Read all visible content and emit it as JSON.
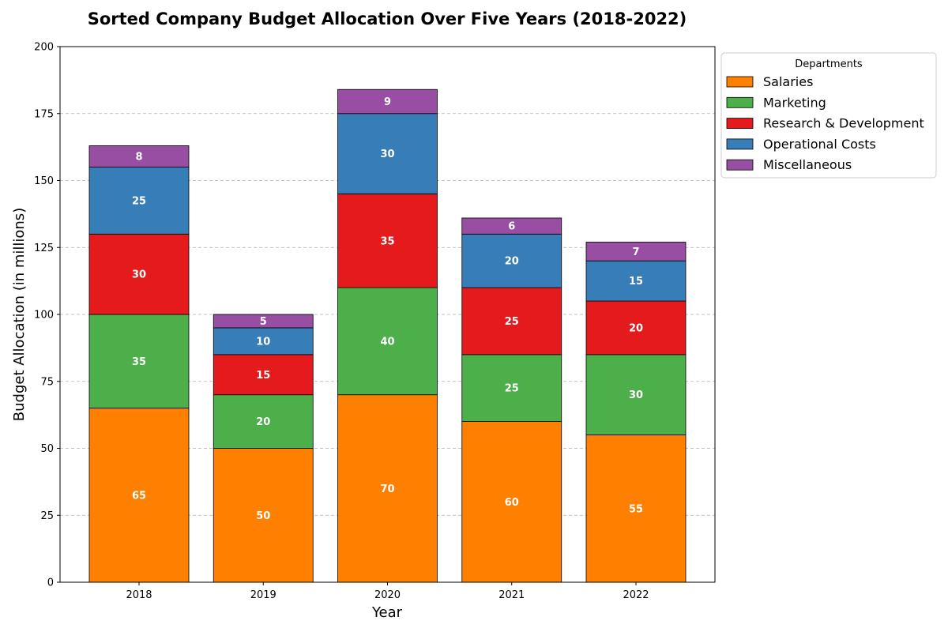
{
  "chart_data": {
    "type": "bar",
    "stacked": true,
    "title": "Sorted Company Budget Allocation Over Five Years (2018-2022)",
    "xlabel": "Year",
    "ylabel": "Budget Allocation (in millions)",
    "categories": [
      "2018",
      "2019",
      "2020",
      "2021",
      "2022"
    ],
    "ylim": [
      0,
      200
    ],
    "yticks": [
      0,
      25,
      50,
      75,
      100,
      125,
      150,
      175,
      200
    ],
    "grid": "y-dashed",
    "legend": {
      "title": "Departments",
      "placement": "outside-top-right"
    },
    "series": [
      {
        "name": "Salaries",
        "color": "#ff7f00",
        "values": [
          65,
          50,
          70,
          60,
          55
        ]
      },
      {
        "name": "Marketing",
        "color": "#4daf4a",
        "values": [
          35,
          20,
          40,
          25,
          30
        ]
      },
      {
        "name": "Research & Development",
        "color": "#e41a1c",
        "values": [
          30,
          15,
          35,
          25,
          20
        ]
      },
      {
        "name": "Operational Costs",
        "color": "#377eb8",
        "values": [
          25,
          10,
          30,
          20,
          15
        ]
      },
      {
        "name": "Miscellaneous",
        "color": "#984ea3",
        "values": [
          8,
          5,
          9,
          6,
          7
        ]
      }
    ]
  }
}
